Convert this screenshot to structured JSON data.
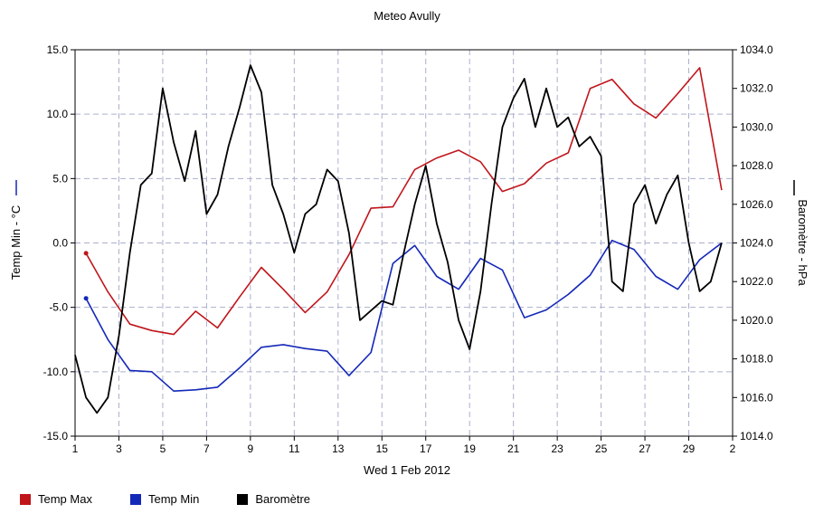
{
  "chart_data": {
    "type": "line",
    "title": "Meteo  Avully",
    "xlabel": "Wed 1 Feb 2012",
    "ylabel_left": "Temp Min - °C",
    "ylabel_right": "Baromètre - hPa",
    "x_ticks": [
      "1",
      "3",
      "5",
      "7",
      "9",
      "11",
      "13",
      "15",
      "17",
      "19",
      "21",
      "23",
      "25",
      "27",
      "29",
      "2"
    ],
    "x_tick_positions": [
      1,
      3,
      5,
      7,
      9,
      11,
      13,
      15,
      17,
      19,
      21,
      23,
      25,
      27,
      29,
      31
    ],
    "xlim": [
      1,
      31
    ],
    "ylim_left": [
      -15,
      15
    ],
    "ylim_right": [
      1014,
      1034
    ],
    "y_ticks_left": [
      "-15.0",
      "-10.0",
      "-5.0",
      "0.0",
      "5.0",
      "10.0",
      "15.0"
    ],
    "y_ticks_right": [
      "1014.0",
      "1016.0",
      "1018.0",
      "1020.0",
      "1022.0",
      "1024.0",
      "1026.0",
      "1028.0",
      "1030.0",
      "1032.0",
      "1034.0"
    ],
    "grid": true,
    "legend_position": "bottom",
    "series": [
      {
        "name": "Temp Max",
        "color": "#c0151b",
        "axis": "left",
        "x": [
          1.5,
          2.5,
          3.5,
          4.5,
          5.5,
          6.5,
          7.5,
          8.5,
          9.5,
          10.5,
          11.5,
          12.5,
          13.5,
          14.5,
          15.5,
          16.5,
          17.5,
          18.5,
          19.5,
          20.5,
          21.5,
          22.5,
          23.5,
          24.5,
          25.5,
          26.5,
          27.5,
          28.5,
          29.5,
          30.5
        ],
        "values": [
          -0.8,
          -3.8,
          -6.3,
          -6.8,
          -7.1,
          -5.3,
          -6.6,
          -4.2,
          -1.9,
          -3.6,
          -5.4,
          -3.8,
          -0.9,
          2.7,
          2.8,
          5.7,
          6.6,
          7.2,
          6.3,
          4.0,
          4.6,
          6.2,
          7.0,
          12.0,
          12.7,
          10.8,
          9.7,
          11.6,
          13.6,
          4.1
        ]
      },
      {
        "name": "Temp Min",
        "color": "#1428b8",
        "axis": "left",
        "x": [
          1.5,
          2.5,
          3.5,
          4.5,
          5.5,
          6.5,
          7.5,
          8.5,
          9.5,
          10.5,
          11.5,
          12.5,
          13.5,
          14.5,
          15.5,
          16.5,
          17.5,
          18.5,
          19.5,
          20.5,
          21.5,
          22.5,
          23.5,
          24.5,
          25.5,
          26.5,
          27.5,
          28.5,
          29.5,
          30.5
        ],
        "values": [
          -4.3,
          -7.5,
          -9.9,
          -10.0,
          -11.5,
          -11.4,
          -11.2,
          -9.7,
          -8.1,
          -7.9,
          -8.2,
          -8.4,
          -10.3,
          -8.5,
          -1.6,
          -0.2,
          -2.6,
          -3.6,
          -1.2,
          -2.1,
          -5.8,
          -5.2,
          -4.0,
          -2.5,
          0.2,
          -0.5,
          -2.6,
          -3.6,
          -1.3,
          0.0
        ]
      },
      {
        "name": "Baromètre",
        "color": "#000000",
        "axis": "right",
        "x": [
          1.0,
          1.5,
          2.0,
          2.5,
          3.0,
          3.5,
          4.0,
          4.5,
          5.0,
          5.5,
          6.0,
          6.5,
          7.0,
          7.5,
          8.0,
          8.5,
          9.0,
          9.5,
          10.0,
          10.5,
          11.0,
          11.5,
          12.0,
          12.5,
          13.0,
          13.5,
          14.0,
          14.5,
          15.0,
          15.5,
          16.0,
          16.5,
          17.0,
          17.5,
          18.0,
          18.5,
          19.0,
          19.5,
          20.0,
          20.5,
          21.0,
          21.5,
          22.0,
          22.5,
          23.0,
          23.5,
          24.0,
          24.5,
          25.0,
          25.5,
          26.0,
          26.5,
          27.0,
          27.5,
          28.0,
          28.5,
          29.0,
          29.5,
          30.0,
          30.5
        ],
        "values": [
          1018.2,
          1016.0,
          1015.2,
          1016.0,
          1019.2,
          1023.5,
          1027.0,
          1027.6,
          1032.0,
          1029.2,
          1027.2,
          1029.8,
          1025.5,
          1026.5,
          1029.0,
          1031.0,
          1033.2,
          1031.8,
          1027.0,
          1025.5,
          1023.5,
          1025.5,
          1026.0,
          1027.8,
          1027.2,
          1024.5,
          1020.0,
          1020.5,
          1021.0,
          1020.8,
          1023.5,
          1026.0,
          1028.0,
          1025.0,
          1023.0,
          1020.0,
          1018.5,
          1021.5,
          1026.0,
          1030.0,
          1031.5,
          1032.5,
          1030.0,
          1032.0,
          1030.0,
          1030.5,
          1029.0,
          1029.5,
          1028.5,
          1022.0,
          1021.5,
          1026.0,
          1027.0,
          1025.0,
          1026.5,
          1027.5,
          1024.0,
          1021.5,
          1022.0,
          1024.0
        ]
      }
    ]
  }
}
